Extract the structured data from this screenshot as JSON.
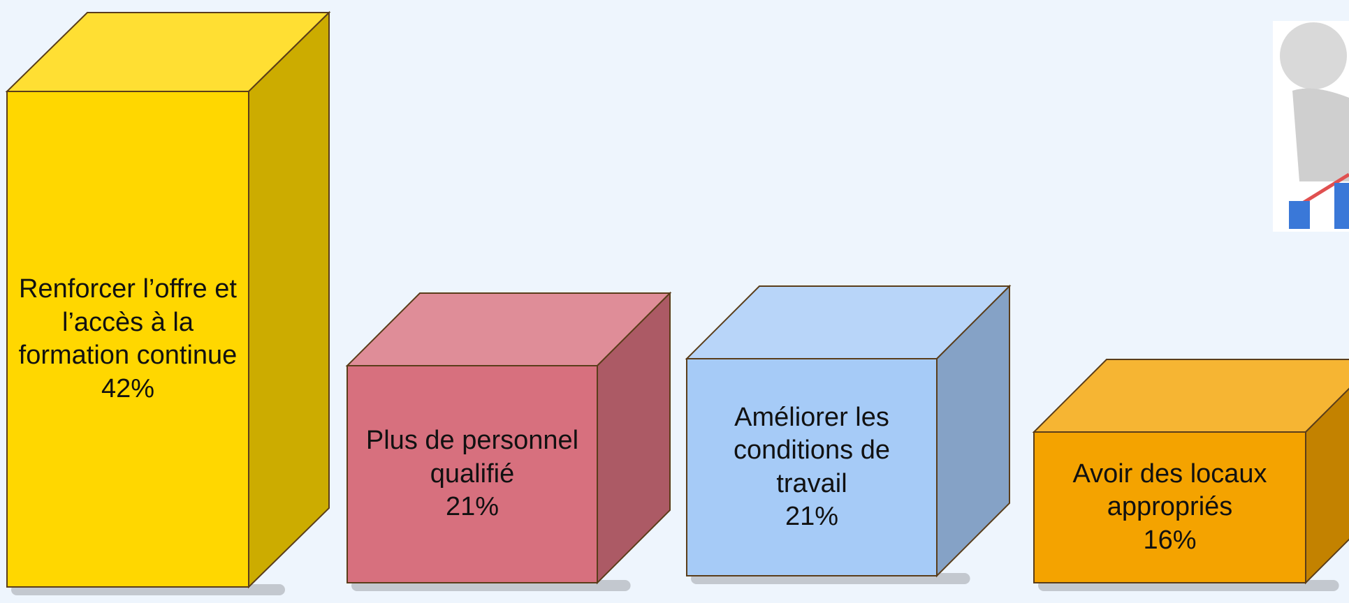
{
  "chart_data": {
    "type": "box3d",
    "categories": [
      "Renforcer l’offre et l’accès à la formation continue",
      "Plus de personnel qualifié",
      "Améliorer les conditions de travail",
      "Avoir des locaux appropriés"
    ],
    "values": [
      42,
      21,
      21,
      16
    ],
    "value_labels": [
      "42%",
      "21%",
      "21%",
      "16%"
    ],
    "colors": [
      "#FFD700",
      "#D7707E",
      "#A6CBF7",
      "#F4A300"
    ]
  }
}
